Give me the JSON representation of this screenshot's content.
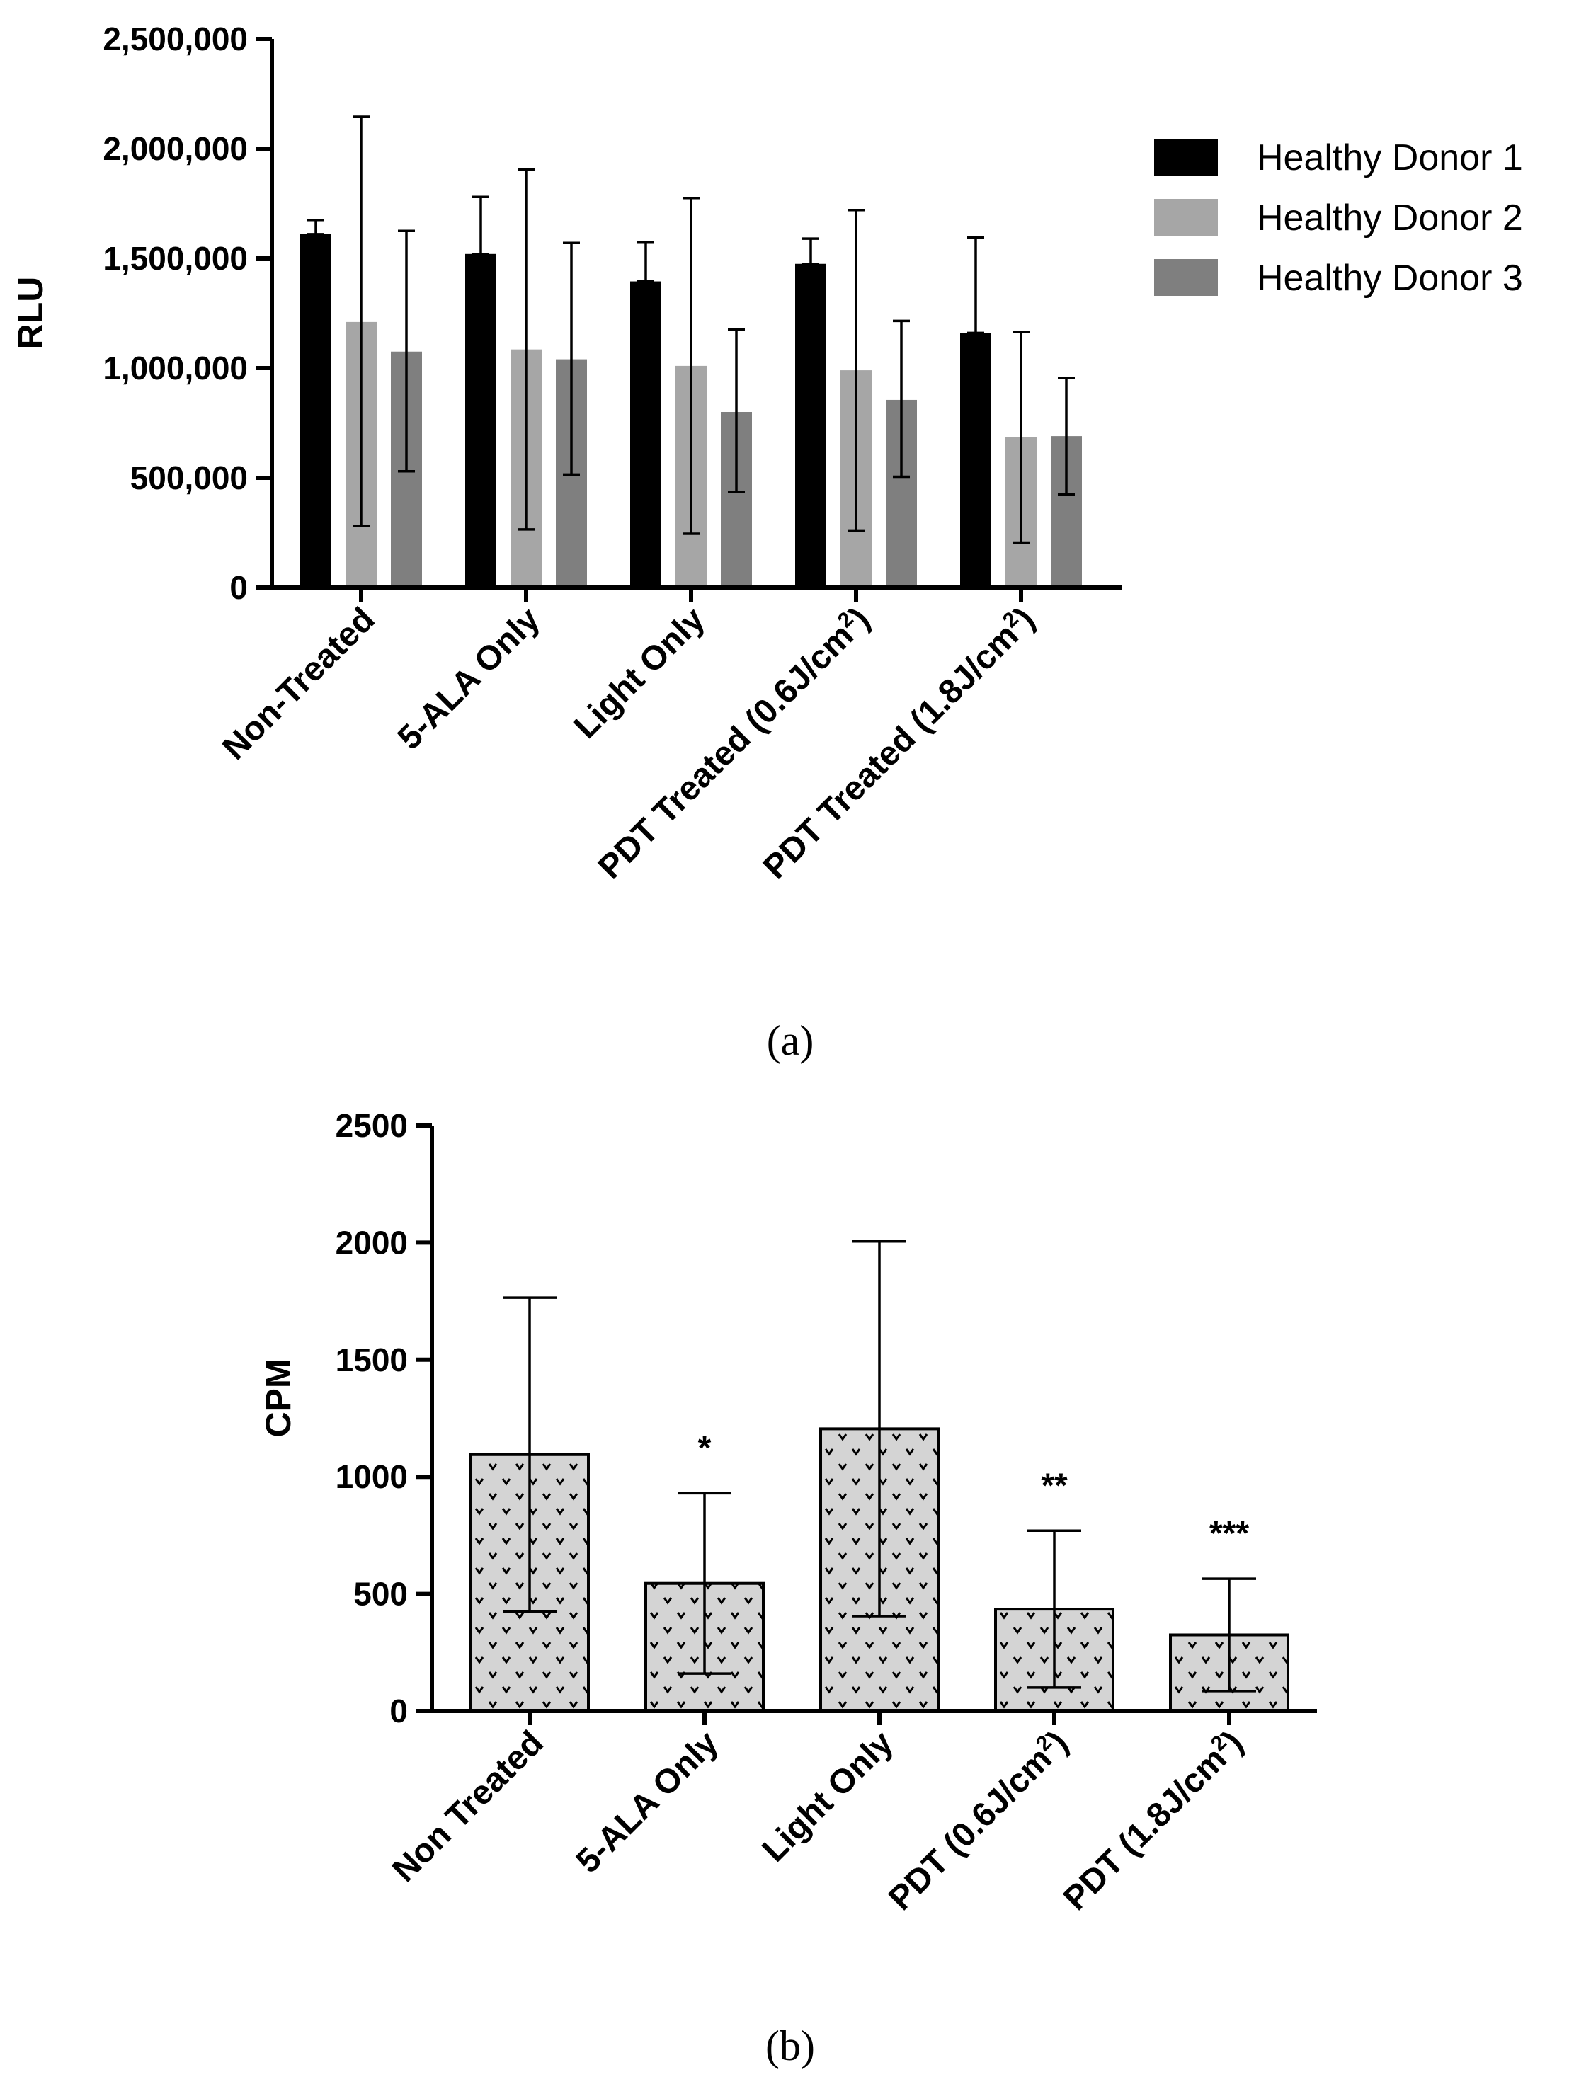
{
  "figure": {
    "panel_labels": [
      "(a)",
      "(b)"
    ]
  },
  "colors": {
    "donor1": "#000000",
    "donor2": "#a6a6a6",
    "donor3": "#7f7f7f",
    "panel_b_fill": "#d4d4d4"
  },
  "chart_data": [
    {
      "id": "a",
      "type": "bar",
      "title": "",
      "xlabel": "",
      "ylabel": "RLU",
      "ylim": [
        0,
        2500000
      ],
      "yticks": [
        0,
        500000,
        1000000,
        1500000,
        2000000,
        2500000
      ],
      "ytick_labels": [
        "0",
        "500,000",
        "1,000,000",
        "1,500,000",
        "2,000,000",
        "2,500,000"
      ],
      "categories": [
        {
          "main": "Non-Treated",
          "sup": "",
          "tail": ""
        },
        {
          "main": "5-ALA Only",
          "sup": "",
          "tail": ""
        },
        {
          "main": "Light Only",
          "sup": "",
          "tail": ""
        },
        {
          "main": "PDT Treated (0.6J/cm",
          "sup": "2",
          "tail": ")"
        },
        {
          "main": "PDT Treated (1.8J/cm",
          "sup": "2",
          "tail": ")"
        }
      ],
      "series": [
        {
          "name": "Healthy Donor 1",
          "values": [
            1610000,
            1520000,
            1395000,
            1475000,
            1160000
          ],
          "error_upper": [
            1675000,
            1780000,
            1575000,
            1590000,
            1595000
          ],
          "error_lower": [
            1610000,
            1520000,
            1395000,
            1475000,
            1160000
          ]
        },
        {
          "name": "Healthy Donor 2",
          "values": [
            1210000,
            1085000,
            1010000,
            990000,
            685000
          ],
          "error_upper": [
            2145000,
            1905000,
            1775000,
            1720000,
            1165000
          ],
          "error_lower": [
            280000,
            265000,
            245000,
            260000,
            205000
          ]
        },
        {
          "name": "Healthy Donor 3",
          "values": [
            1075000,
            1040000,
            800000,
            855000,
            690000
          ],
          "error_upper": [
            1625000,
            1570000,
            1175000,
            1215000,
            955000
          ],
          "error_lower": [
            530000,
            515000,
            435000,
            505000,
            425000
          ]
        }
      ],
      "legend": [
        "Healthy Donor 1",
        "Healthy Donor 2",
        "Healthy Donor 3"
      ],
      "legend_position": "right"
    },
    {
      "id": "b",
      "type": "bar",
      "title": "",
      "xlabel": "",
      "ylabel": "CPM",
      "ylim": [
        0,
        2500
      ],
      "yticks": [
        0,
        500,
        1000,
        1500,
        2000,
        2500
      ],
      "ytick_labels": [
        "0",
        "500",
        "1000",
        "1500",
        "2000",
        "2500"
      ],
      "categories": [
        {
          "main": "Non Treated",
          "sup": "",
          "tail": ""
        },
        {
          "main": "5-ALA Only",
          "sup": "",
          "tail": ""
        },
        {
          "main": "Light Only",
          "sup": "",
          "tail": ""
        },
        {
          "main": "PDT (0.6J/cm",
          "sup": "2",
          "tail": ")"
        },
        {
          "main": "PDT (1.8J/cm",
          "sup": "2",
          "tail": ")"
        }
      ],
      "values": [
        1095,
        545,
        1205,
        435,
        325
      ],
      "error_upper": [
        1765,
        930,
        2005,
        770,
        565
      ],
      "error_lower": [
        425,
        160,
        405,
        100,
        85
      ],
      "significance": [
        "",
        "*",
        "",
        "**",
        "***"
      ]
    }
  ]
}
